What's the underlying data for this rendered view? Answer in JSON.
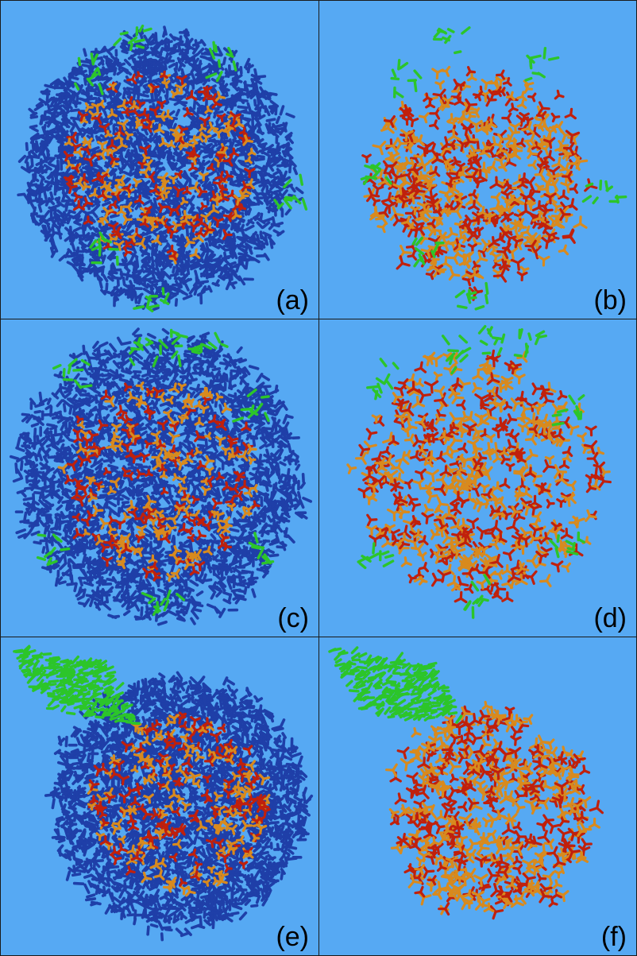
{
  "colors": {
    "background": "#56a9f3",
    "blue_molecules": "#1f3fa8",
    "orange_molecules": "#d88a1e",
    "red_molecules": "#c0200c",
    "green_molecules": "#2cc52a",
    "border": "#1a1a1a"
  },
  "panels": [
    {
      "label": "(a)",
      "shows_blue_shell": true
    },
    {
      "label": "(b)",
      "shows_blue_shell": false
    },
    {
      "label": "(c)",
      "shows_blue_shell": true
    },
    {
      "label": "(d)",
      "shows_blue_shell": false
    },
    {
      "label": "(e)",
      "shows_blue_shell": true
    },
    {
      "label": "(f)",
      "shows_blue_shell": false
    }
  ]
}
